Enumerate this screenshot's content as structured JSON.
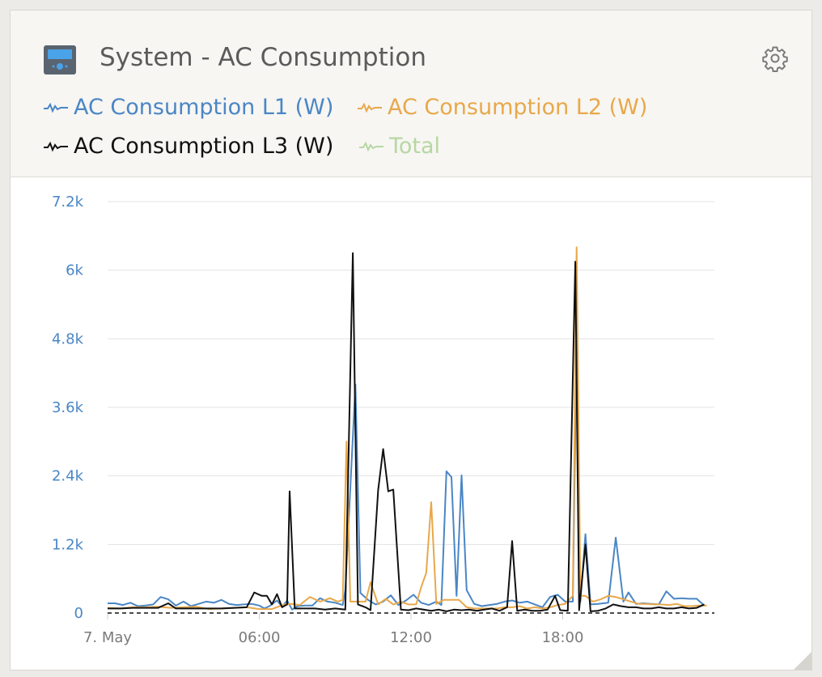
{
  "widget": {
    "title": "System - AC Consumption",
    "icon": "device-monitor-icon",
    "settings_icon": "gear-icon"
  },
  "legend": [
    {
      "label": "AC Consumption L1 (W)",
      "color": "#4a86c5"
    },
    {
      "label": "AC Consumption L2 (W)",
      "color": "#e8a84a"
    },
    {
      "label": "AC Consumption L3 (W)",
      "color": "#111111"
    },
    {
      "label": "Total",
      "color": "#b7d7a3"
    }
  ],
  "chart_data": {
    "type": "line",
    "y_ticks": [
      "0",
      "1.2k",
      "2.4k",
      "3.6k",
      "4.8k",
      "6k",
      "7.2k"
    ],
    "ylim": [
      0,
      7200
    ],
    "x_ticks": [
      {
        "label": "7. May",
        "hour": 0
      },
      {
        "label": "06:00",
        "hour": 6
      },
      {
        "label": "12:00",
        "hour": 12
      },
      {
        "label": "18:00",
        "hour": 18
      }
    ],
    "xlim_hours": [
      0,
      24
    ],
    "grid": true,
    "series": [
      {
        "name": "AC Consumption L1 (W)",
        "color": "#4a86c5",
        "points": [
          [
            0,
            170
          ],
          [
            0.3,
            170
          ],
          [
            0.6,
            140
          ],
          [
            0.9,
            180
          ],
          [
            1.2,
            120
          ],
          [
            1.5,
            130
          ],
          [
            1.8,
            150
          ],
          [
            2.1,
            280
          ],
          [
            2.4,
            240
          ],
          [
            2.7,
            130
          ],
          [
            3,
            200
          ],
          [
            3.3,
            120
          ],
          [
            3.6,
            160
          ],
          [
            3.9,
            200
          ],
          [
            4.2,
            180
          ],
          [
            4.5,
            230
          ],
          [
            4.8,
            160
          ],
          [
            5.1,
            140
          ],
          [
            5.4,
            150
          ],
          [
            5.7,
            160
          ],
          [
            6.0,
            130
          ],
          [
            6.2,
            80
          ],
          [
            6.4,
            120
          ],
          [
            6.7,
            220
          ],
          [
            6.9,
            110
          ],
          [
            7.1,
            220
          ],
          [
            7.3,
            60
          ],
          [
            7.5,
            120
          ],
          [
            7.8,
            130
          ],
          [
            8.1,
            130
          ],
          [
            8.4,
            260
          ],
          [
            8.7,
            200
          ],
          [
            9.0,
            180
          ],
          [
            9.3,
            140
          ],
          [
            9.4,
            400
          ],
          [
            9.8,
            4000
          ],
          [
            10.0,
            350
          ],
          [
            10.3,
            230
          ],
          [
            10.6,
            150
          ],
          [
            10.9,
            200
          ],
          [
            11.2,
            310
          ],
          [
            11.5,
            140
          ],
          [
            11.8,
            220
          ],
          [
            12.1,
            320
          ],
          [
            12.4,
            180
          ],
          [
            12.7,
            140
          ],
          [
            13.0,
            200
          ],
          [
            13.2,
            140
          ],
          [
            13.4,
            2480
          ],
          [
            13.6,
            2380
          ],
          [
            13.8,
            300
          ],
          [
            14.0,
            2410
          ],
          [
            14.2,
            400
          ],
          [
            14.5,
            160
          ],
          [
            14.8,
            120
          ],
          [
            15.1,
            140
          ],
          [
            15.4,
            160
          ],
          [
            15.7,
            200
          ],
          [
            16.0,
            220
          ],
          [
            16.3,
            180
          ],
          [
            16.6,
            200
          ],
          [
            16.9,
            150
          ],
          [
            17.2,
            100
          ],
          [
            17.5,
            280
          ],
          [
            17.8,
            320
          ],
          [
            18.1,
            200
          ],
          [
            18.4,
            200
          ],
          [
            18.55,
            4800
          ],
          [
            18.7,
            200
          ],
          [
            18.9,
            1380
          ],
          [
            19.1,
            150
          ],
          [
            19.4,
            160
          ],
          [
            19.8,
            180
          ],
          [
            20.1,
            1320
          ],
          [
            20.4,
            200
          ],
          [
            20.6,
            360
          ],
          [
            20.9,
            160
          ],
          [
            21.2,
            170
          ],
          [
            21.5,
            160
          ],
          [
            21.8,
            150
          ],
          [
            22.1,
            380
          ],
          [
            22.4,
            250
          ],
          [
            22.7,
            260
          ],
          [
            23.0,
            250
          ],
          [
            23.3,
            250
          ],
          [
            23.6,
            130
          ]
        ]
      },
      {
        "name": "AC Consumption L2 (W)",
        "color": "#e8a84a",
        "points": [
          [
            0,
            90
          ],
          [
            0.5,
            80
          ],
          [
            1.0,
            100
          ],
          [
            1.5,
            100
          ],
          [
            2.0,
            110
          ],
          [
            2.5,
            90
          ],
          [
            3.0,
            100
          ],
          [
            3.5,
            110
          ],
          [
            4.0,
            70
          ],
          [
            4.5,
            80
          ],
          [
            5.0,
            90
          ],
          [
            5.5,
            100
          ],
          [
            6.0,
            70
          ],
          [
            6.5,
            70
          ],
          [
            7.0,
            150
          ],
          [
            7.3,
            160
          ],
          [
            7.6,
            140
          ],
          [
            8.0,
            280
          ],
          [
            8.4,
            200
          ],
          [
            8.8,
            260
          ],
          [
            9.1,
            200
          ],
          [
            9.3,
            230
          ],
          [
            9.45,
            3000
          ],
          [
            9.6,
            200
          ],
          [
            9.9,
            200
          ],
          [
            10.2,
            200
          ],
          [
            10.4,
            540
          ],
          [
            10.7,
            150
          ],
          [
            11.0,
            250
          ],
          [
            11.3,
            150
          ],
          [
            11.6,
            200
          ],
          [
            11.9,
            150
          ],
          [
            12.2,
            150
          ],
          [
            12.4,
            450
          ],
          [
            12.6,
            700
          ],
          [
            12.8,
            1940
          ],
          [
            13.0,
            160
          ],
          [
            13.3,
            230
          ],
          [
            13.6,
            230
          ],
          [
            13.9,
            230
          ],
          [
            14.2,
            100
          ],
          [
            14.5,
            80
          ],
          [
            14.8,
            80
          ],
          [
            15.1,
            80
          ],
          [
            15.4,
            80
          ],
          [
            15.7,
            100
          ],
          [
            16.0,
            100
          ],
          [
            16.3,
            120
          ],
          [
            16.6,
            80
          ],
          [
            16.9,
            100
          ],
          [
            17.2,
            80
          ],
          [
            17.5,
            100
          ],
          [
            17.8,
            140
          ],
          [
            18.1,
            160
          ],
          [
            18.4,
            300
          ],
          [
            18.55,
            6400
          ],
          [
            18.7,
            300
          ],
          [
            18.9,
            300
          ],
          [
            19.2,
            200
          ],
          [
            19.5,
            240
          ],
          [
            19.8,
            300
          ],
          [
            20.1,
            280
          ],
          [
            20.4,
            240
          ],
          [
            20.7,
            200
          ],
          [
            21.0,
            160
          ],
          [
            21.3,
            160
          ],
          [
            21.6,
            150
          ],
          [
            21.9,
            150
          ],
          [
            22.2,
            140
          ],
          [
            22.5,
            160
          ],
          [
            22.8,
            120
          ],
          [
            23.1,
            120
          ],
          [
            23.4,
            130
          ],
          [
            23.7,
            130
          ]
        ]
      },
      {
        "name": "AC Consumption L3 (W)",
        "color": "#111111",
        "points": [
          [
            0,
            80
          ],
          [
            0.5,
            80
          ],
          [
            1.0,
            90
          ],
          [
            1.5,
            90
          ],
          [
            2.0,
            90
          ],
          [
            2.4,
            170
          ],
          [
            2.7,
            80
          ],
          [
            3.0,
            80
          ],
          [
            3.5,
            80
          ],
          [
            4.0,
            80
          ],
          [
            4.5,
            80
          ],
          [
            5.0,
            90
          ],
          [
            5.5,
            100
          ],
          [
            5.8,
            360
          ],
          [
            6.1,
            300
          ],
          [
            6.3,
            300
          ],
          [
            6.5,
            150
          ],
          [
            6.7,
            330
          ],
          [
            6.9,
            100
          ],
          [
            7.1,
            150
          ],
          [
            7.2,
            2130
          ],
          [
            7.4,
            80
          ],
          [
            7.8,
            80
          ],
          [
            8.2,
            80
          ],
          [
            8.6,
            60
          ],
          [
            9.0,
            80
          ],
          [
            9.4,
            60
          ],
          [
            9.7,
            6300
          ],
          [
            9.9,
            150
          ],
          [
            10.2,
            100
          ],
          [
            10.4,
            50
          ],
          [
            10.7,
            2150
          ],
          [
            10.9,
            2870
          ],
          [
            11.1,
            2130
          ],
          [
            11.3,
            2160
          ],
          [
            11.6,
            60
          ],
          [
            11.9,
            50
          ],
          [
            12.2,
            80
          ],
          [
            12.5,
            60
          ],
          [
            12.8,
            40
          ],
          [
            13.1,
            60
          ],
          [
            13.4,
            30
          ],
          [
            13.7,
            60
          ],
          [
            14.0,
            50
          ],
          [
            14.3,
            60
          ],
          [
            14.6,
            40
          ],
          [
            14.9,
            60
          ],
          [
            15.2,
            80
          ],
          [
            15.5,
            40
          ],
          [
            15.8,
            100
          ],
          [
            16.0,
            1260
          ],
          [
            16.2,
            40
          ],
          [
            16.5,
            60
          ],
          [
            16.8,
            40
          ],
          [
            17.1,
            40
          ],
          [
            17.4,
            60
          ],
          [
            17.7,
            300
          ],
          [
            17.9,
            50
          ],
          [
            18.2,
            40
          ],
          [
            18.5,
            6150
          ],
          [
            18.65,
            50
          ],
          [
            18.9,
            1200
          ],
          [
            19.1,
            30
          ],
          [
            19.4,
            40
          ],
          [
            19.7,
            80
          ],
          [
            20.0,
            150
          ],
          [
            20.3,
            120
          ],
          [
            20.6,
            100
          ],
          [
            20.9,
            100
          ],
          [
            21.2,
            80
          ],
          [
            21.5,
            80
          ],
          [
            21.8,
            100
          ],
          [
            22.1,
            80
          ],
          [
            22.4,
            80
          ],
          [
            22.7,
            100
          ],
          [
            23.0,
            80
          ],
          [
            23.3,
            90
          ],
          [
            23.6,
            150
          ]
        ]
      }
    ]
  }
}
